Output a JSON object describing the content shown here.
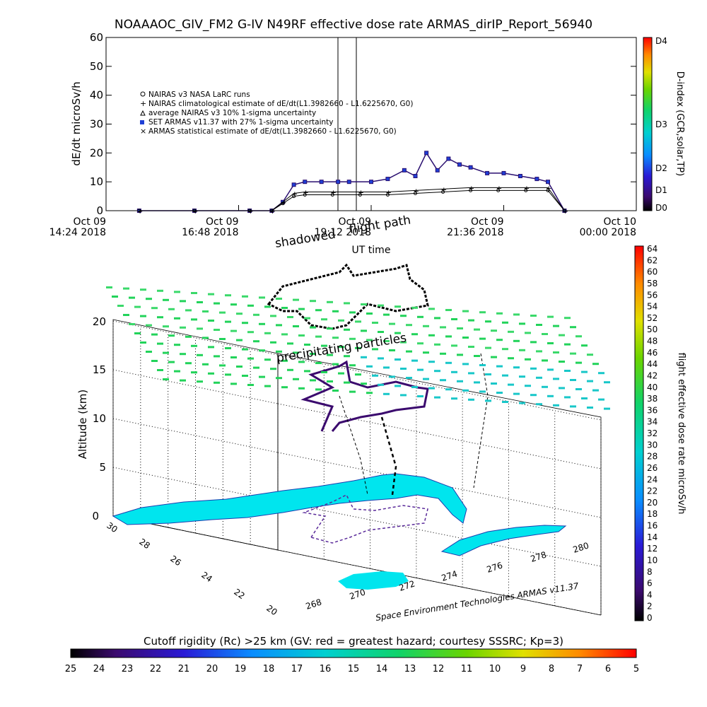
{
  "header": {
    "title": "NOAAAOC_GIV_FM2 G-IV    N49RF   effective dose rate ARMAS_dirIP_Report_56940"
  },
  "top_panel": {
    "ylabel": "dE/dt microSv/h",
    "xlabel": "UT time",
    "xticks": [
      {
        "line1": "Oct 09",
        "line2": "14:24 2018"
      },
      {
        "line1": "Oct 09",
        "line2": "16:48 2018"
      },
      {
        "line1": "Oct 09",
        "line2": "19:12 2018"
      },
      {
        "line1": "Oct 09",
        "line2": "21:36 2018"
      },
      {
        "line1": "Oct 10",
        "line2": "00:00 2018"
      }
    ],
    "yticks": [
      "0",
      "10",
      "20",
      "30",
      "40",
      "50",
      "60"
    ],
    "legend": [
      {
        "symbol": "o",
        "text": "NAIRAS v3 NASA LaRC runs"
      },
      {
        "symbol": "+",
        "text": "NAIRAS climatological estimate of dE/dt(L1.3982660 - L1.6225670, G0)"
      },
      {
        "symbol": "tri",
        "text": "average NAIRAS v3 10% 1-sigma uncertainty"
      },
      {
        "symbol": "sq",
        "text": "SET ARMAS v11.37 with 27% 1-sigma uncertainty"
      },
      {
        "symbol": "x",
        "text": "ARMAS statistical estimate of dE/dt(L1.3982660 - L1.6225670, G0)"
      }
    ],
    "dindex": {
      "label": "D-index (GCR,solar,TP)",
      "ticks": [
        "D4",
        "D3",
        "D2",
        "D1",
        "D0"
      ]
    }
  },
  "chart_data": [
    {
      "type": "line",
      "title": "NOAAAOC_GIV_FM2 G-IV    N49RF   effective dose rate ARMAS_dirIP_Report_56940",
      "xlabel": "UT time",
      "ylabel": "dE/dt microSv/h",
      "x_unit": "hours UT since Oct 09 00:00 2018",
      "xlim": [
        14.4,
        24.0
      ],
      "ylim": [
        0,
        60
      ],
      "grid": false,
      "legend_placement": "upper-left",
      "series": [
        {
          "name": "SET ARMAS v11.37 with 27% 1-sigma uncertainty",
          "x": [
            15.0,
            16.0,
            17.0,
            17.4,
            17.6,
            17.8,
            18.0,
            18.3,
            18.6,
            18.8,
            19.2,
            19.5,
            19.8,
            20.0,
            20.2,
            20.4,
            20.6,
            20.8,
            21.0,
            21.3,
            21.6,
            21.9,
            22.2,
            22.4,
            22.7
          ],
          "values": [
            0,
            0,
            0,
            0,
            3,
            9,
            10,
            10,
            10,
            10,
            10,
            11,
            14,
            12,
            20,
            14,
            18,
            16,
            15,
            13,
            13,
            12,
            11,
            10,
            0
          ]
        },
        {
          "name": "NAIRAS climatological estimate of dE/dt(L1.3982660 - L1.6225670, G0)",
          "x": [
            15.0,
            16.0,
            17.0,
            17.4,
            17.6,
            17.8,
            18.0,
            18.5,
            19.0,
            19.5,
            20.0,
            20.5,
            21.0,
            21.5,
            22.0,
            22.4,
            22.7
          ],
          "values": [
            0,
            0,
            0,
            0,
            3,
            6,
            6.5,
            6.5,
            6.5,
            6.5,
            7,
            7.5,
            8,
            8,
            8,
            8,
            0
          ]
        },
        {
          "name": "NAIRAS v3 NASA LaRC runs",
          "x": [
            15.0,
            16.0,
            17.0,
            17.4,
            17.6,
            17.8,
            18.0,
            18.5,
            19.0,
            19.5,
            20.0,
            20.5,
            21.0,
            21.5,
            22.0,
            22.4,
            22.7
          ],
          "values": [
            0,
            0,
            0,
            0,
            2.5,
            5,
            5.5,
            5.5,
            5.5,
            5.5,
            6,
            6.5,
            7,
            7,
            7,
            7,
            0
          ]
        }
      ]
    }
  ],
  "lower_panel": {
    "label_shadowed": "shadowed",
    "label_flightpath": "flight path",
    "label_precip": "precipitating particles",
    "zlabel": "Altitude (km)",
    "zticks": [
      "0",
      "5",
      "10",
      "15",
      "20"
    ],
    "lat_ticks": [
      "30",
      "28",
      "26",
      "24",
      "22",
      "20"
    ],
    "lon_ticks": [
      "268",
      "270",
      "272",
      "274",
      "276",
      "278",
      "280"
    ],
    "credit": "Space Environment Technologies ARMAS v11.37"
  },
  "right_colorbar": {
    "label": "flight effective dose rate microSv/h",
    "ticks": [
      "64",
      "62",
      "60",
      "58",
      "56",
      "54",
      "52",
      "50",
      "48",
      "46",
      "44",
      "42",
      "40",
      "38",
      "36",
      "34",
      "32",
      "30",
      "28",
      "26",
      "24",
      "22",
      "20",
      "18",
      "16",
      "14",
      "12",
      "10",
      "8",
      "6",
      "4",
      "2",
      "0"
    ]
  },
  "bottom_colorbar": {
    "title": "Cutoff rigidity (Rc) >25 km (GV: red = greatest hazard; courtesy SSSRC; Kp=3)",
    "ticks": [
      "25",
      "24",
      "23",
      "22",
      "21",
      "20",
      "19",
      "18",
      "17",
      "16",
      "15",
      "14",
      "13",
      "12",
      "11",
      "10",
      "9",
      "8",
      "7",
      "6",
      "5"
    ]
  },
  "colors": {
    "armas_markers": "#2a0f70",
    "armas_fill": "#1f3fd6",
    "nairas_black": "#000000",
    "land": "#00e5ee",
    "grid_green": "#22d35a",
    "grid_cyan": "#19c7c9"
  }
}
